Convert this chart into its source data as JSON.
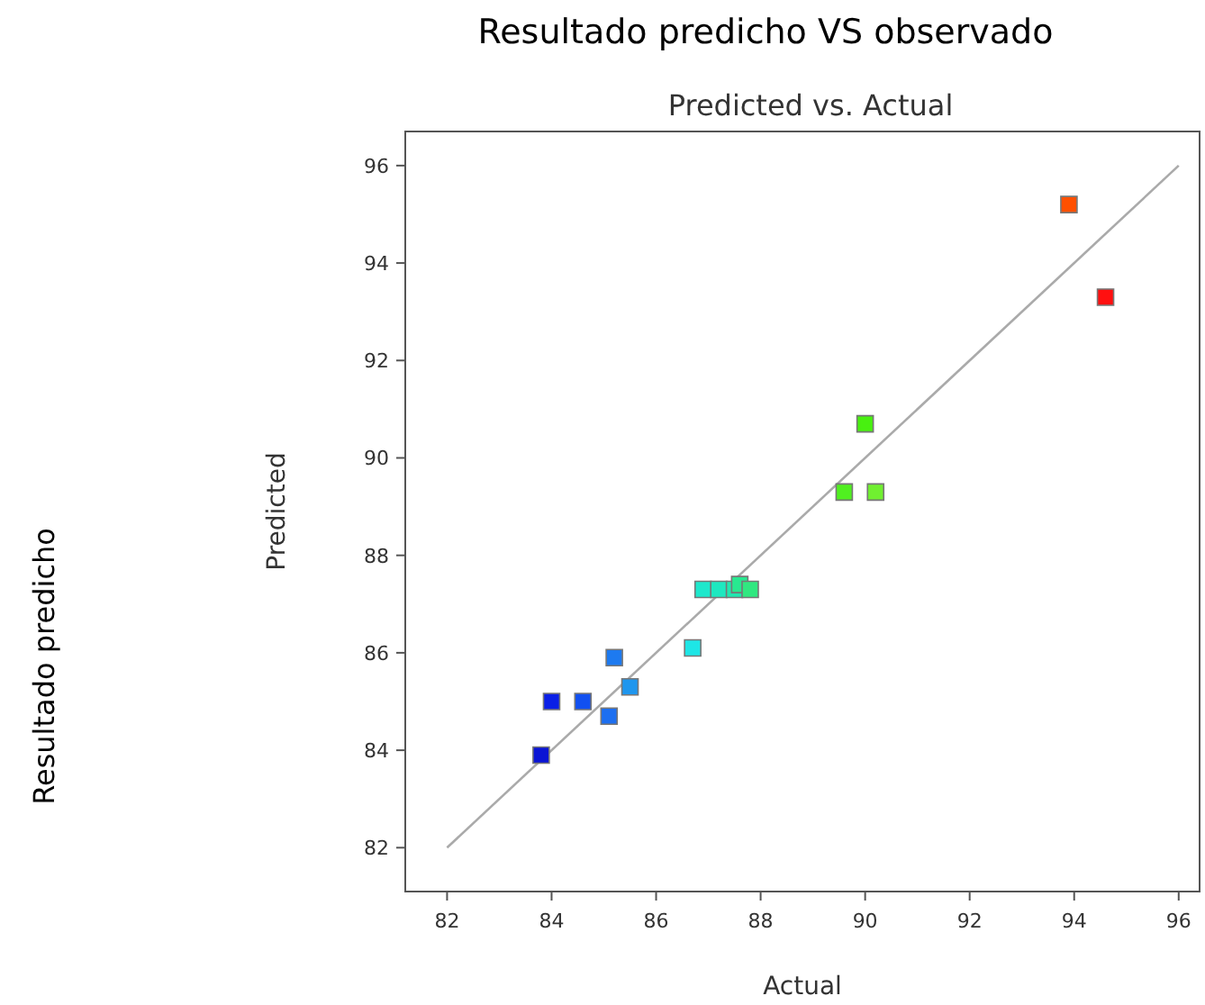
{
  "chart_data": {
    "type": "scatter",
    "title": "Resultado predicho VS observado",
    "subtitle": "Predicted vs. Actual",
    "xlabel": "Actual",
    "ylabel": "Predicted",
    "annotations": [
      "Resultado predicho"
    ],
    "xlim": [
      81.2,
      96.4
    ],
    "ylim": [
      81.1,
      96.7
    ],
    "xticks": [
      82,
      84,
      86,
      88,
      90,
      92,
      94,
      96
    ],
    "yticks": [
      82,
      84,
      86,
      88,
      90,
      92,
      94,
      96
    ],
    "grid": false,
    "series": [
      {
        "marker": "square",
        "x": [
          83.8,
          84.0,
          84.6,
          85.1,
          85.2,
          85.5,
          86.7,
          86.9,
          87.2,
          87.5,
          87.6,
          87.8,
          89.6,
          90.0,
          90.2,
          93.9,
          94.6
        ],
        "values": [
          83.9,
          85.0,
          85.0,
          84.7,
          85.9,
          85.3,
          86.1,
          87.3,
          87.3,
          87.3,
          87.4,
          87.3,
          89.3,
          90.7,
          89.3,
          95.2,
          93.3
        ],
        "colors": [
          "#0a14d4",
          "#0a1fe6",
          "#1150f0",
          "#1d6ff0",
          "#1d7af0",
          "#1f96ee",
          "#1ee6e6",
          "#1ee8cc",
          "#1ee8c0",
          "#20e8b0",
          "#28e890",
          "#30e880",
          "#50f020",
          "#48f010",
          "#70f030",
          "#ff5000",
          "#ff1010"
        ]
      },
      {
        "type": "line",
        "x": [
          82,
          96
        ],
        "values": [
          82,
          96
        ],
        "color": "#aaaaaa",
        "line_style": "solid",
        "marker": "none"
      }
    ]
  }
}
